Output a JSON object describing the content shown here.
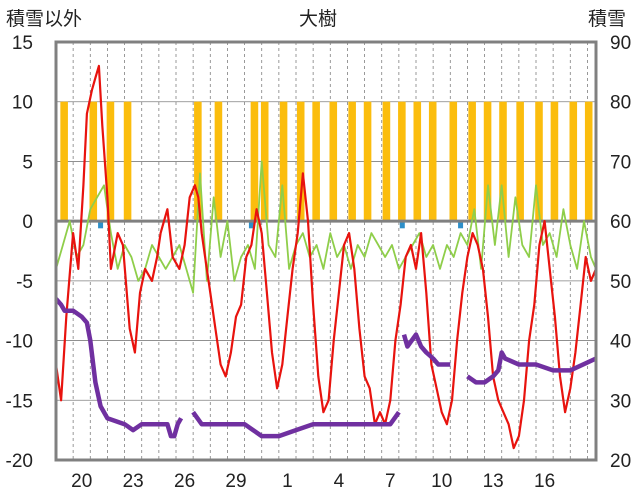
{
  "chart_data": {
    "type": "line",
    "title": "大樹",
    "left_axis_label": "積雪以外",
    "right_axis_label": "積雪",
    "left_ylim": [
      -20,
      15
    ],
    "left_ticks": [
      15,
      10,
      5,
      0,
      -5,
      -10,
      -15,
      -20
    ],
    "right_ylim": [
      20,
      90
    ],
    "right_ticks": [
      90,
      80,
      70,
      60,
      50,
      40,
      30,
      20
    ],
    "x_range": [
      0,
      31.5
    ],
    "x_tick_labels": [
      "20",
      "23",
      "26",
      "29",
      "1",
      "4",
      "7",
      "10",
      "13",
      "16"
    ],
    "x_tick_pos": [
      1.5,
      4.5,
      7.5,
      10.5,
      13.5,
      16.5,
      19.5,
      22.5,
      25.5,
      28.5
    ],
    "grid": true,
    "colors": {
      "temperature": "#e8130e",
      "wind": "#8fce4a",
      "sunshine": "#fbbd0d",
      "precipitation": "#2e8fc9",
      "snow_depth": "#7030a0",
      "zero_line": "#808080",
      "grid": "#808080"
    },
    "series": [
      {
        "kind": "temperature",
        "axis": "left",
        "x": [
          0,
          0.3,
          0.6,
          1.0,
          1.3,
          1.6,
          1.8,
          2.1,
          2.3,
          2.5,
          2.7,
          3.0,
          3.2,
          3.6,
          3.9,
          4.3,
          4.6,
          4.9,
          5.2,
          5.6,
          5.9,
          6.1,
          6.5,
          6.8,
          7.2,
          7.5,
          7.8,
          8.1,
          8.3,
          8.5,
          8.7,
          9.0,
          9.3,
          9.6,
          9.9,
          10.2,
          10.5,
          10.8,
          11.1,
          11.4,
          11.7,
          12.0,
          12.3,
          12.6,
          12.9,
          13.2,
          13.5,
          13.8,
          14.1,
          14.4,
          14.7,
          15.0,
          15.3,
          15.6,
          15.9,
          16.2,
          16.5,
          16.8,
          17.1,
          17.4,
          17.7,
          18.0,
          18.3,
          18.6,
          18.9,
          19.2,
          19.5,
          19.8,
          20.1,
          20.4,
          20.7,
          21.0,
          21.3,
          21.6,
          21.9,
          22.2,
          22.5,
          22.8,
          23.1,
          23.4,
          23.7,
          24.0,
          24.3,
          24.6,
          24.9,
          25.2,
          25.5,
          25.8,
          26.1,
          26.4,
          26.7,
          27.0,
          27.3,
          27.6,
          27.9,
          28.2,
          28.5,
          28.8,
          29.1,
          29.4,
          29.7,
          30.0,
          30.3,
          30.6,
          30.9,
          31.2,
          31.5
        ],
        "y": [
          -12,
          -15,
          -8,
          -1,
          -4,
          3,
          9,
          11,
          12,
          13,
          8,
          2,
          -4,
          -1,
          -2,
          -9,
          -11,
          -6,
          -4,
          -5,
          -3,
          -1,
          1,
          -3,
          -4,
          -2,
          2,
          3,
          2,
          -1,
          -3,
          -6,
          -9,
          -12,
          -13,
          -11,
          -8,
          -7,
          -3,
          -2,
          1,
          -1,
          -6,
          -11,
          -14,
          -12,
          -8,
          -4,
          -1,
          4,
          0,
          -7,
          -13,
          -16,
          -15,
          -10,
          -6,
          -2,
          -1,
          -4,
          -9,
          -13,
          -14,
          -17,
          -16,
          -17,
          -15,
          -10,
          -7,
          -3,
          -2,
          -4,
          -1,
          -6,
          -12,
          -14,
          -16,
          -17,
          -15,
          -10,
          -6,
          -3,
          -1,
          -2,
          -4,
          -8,
          -13,
          -15,
          -16,
          -17,
          -19,
          -18,
          -15,
          -10,
          -7,
          -2,
          0,
          -4,
          -8,
          -13,
          -16,
          -14,
          -11,
          -7,
          -3,
          -5,
          -4
        ]
      },
      {
        "kind": "wind",
        "axis": "left",
        "x": [
          0,
          0.4,
          0.8,
          1.2,
          1.6,
          2.0,
          2.4,
          2.8,
          3.2,
          3.6,
          4.0,
          4.4,
          4.8,
          5.2,
          5.6,
          6.0,
          6.4,
          6.8,
          7.2,
          7.6,
          8.0,
          8.4,
          8.8,
          9.2,
          9.6,
          10.0,
          10.4,
          10.8,
          11.2,
          11.6,
          12.0,
          12.4,
          12.8,
          13.2,
          13.6,
          14.0,
          14.4,
          14.8,
          15.2,
          15.6,
          16.0,
          16.4,
          16.8,
          17.2,
          17.6,
          18.0,
          18.4,
          18.8,
          19.2,
          19.6,
          20.0,
          20.4,
          20.8,
          21.2,
          21.6,
          22.0,
          22.4,
          22.8,
          23.2,
          23.6,
          24.0,
          24.4,
          24.8,
          25.2,
          25.6,
          26.0,
          26.4,
          26.8,
          27.2,
          27.6,
          28.0,
          28.4,
          28.8,
          29.2,
          29.6,
          30.0,
          30.4,
          30.8,
          31.2,
          31.5
        ],
        "y": [
          -4,
          -2,
          0,
          -3,
          -2,
          1,
          2,
          3,
          -1,
          -4,
          -2,
          -3,
          -5,
          -4,
          -2,
          -3,
          -4,
          -3,
          -2,
          -4,
          -6,
          4,
          -5,
          2,
          -3,
          0,
          -5,
          -3,
          -2,
          -4,
          5,
          -2,
          -3,
          3,
          -4,
          -2,
          -1,
          -3,
          -2,
          -4,
          -1,
          -3,
          -2,
          -4,
          -2,
          -3,
          -1,
          -2,
          -3,
          -2,
          -4,
          -3,
          -2,
          -1,
          -3,
          -2,
          -4,
          -2,
          -3,
          -1,
          -2,
          1,
          -4,
          3,
          -2,
          3,
          -3,
          2,
          -2,
          -3,
          3,
          -2,
          -1,
          -3,
          1,
          -2,
          -4,
          0,
          -3,
          -4
        ]
      },
      {
        "kind": "snow_depth",
        "axis": "right",
        "segments": [
          {
            "x": [
              0,
              0.3,
              0.5,
              1.0,
              1.5,
              1.8,
              2.0,
              2.3,
              2.6,
              3.0,
              4.0,
              4.5,
              5.0,
              5.5,
              6.5,
              6.7,
              6.9,
              7.1,
              7.3
            ],
            "y": [
              47,
              46,
              45,
              45,
              44,
              43,
              40,
              33,
              29,
              27,
              26,
              25,
              26,
              26,
              26,
              24,
              24,
              26,
              27
            ]
          },
          {
            "x": [
              8.0,
              8.5,
              9.0,
              10.0,
              11.0,
              11.5,
              12.0,
              12.5,
              13.0,
              14.0,
              15.0,
              16.0,
              17.0,
              18.0,
              19.0,
              19.5,
              20.0
            ],
            "y": [
              28,
              26,
              26,
              26,
              26,
              25,
              24,
              24,
              24,
              25,
              26,
              26,
              26,
              26,
              26,
              26,
              28
            ]
          },
          {
            "x": [
              20.3,
              20.5,
              21.0,
              21.3,
              21.6,
              22.0,
              22.3,
              22.8,
              23.0
            ],
            "y": [
              41,
              39,
              41,
              39,
              38,
              37,
              36,
              36,
              36
            ]
          },
          {
            "x": [
              24.0,
              24.5,
              25.0,
              25.5,
              25.8,
              26.0,
              26.2,
              27.0,
              28.0,
              29.0,
              30.0,
              31.5
            ],
            "y": [
              34,
              33,
              33,
              34,
              35,
              38,
              37,
              36,
              36,
              35,
              35,
              37
            ]
          }
        ]
      }
    ],
    "sunshine_bars_x": [
      0.4,
      0.55,
      2.1,
      2.25,
      3.1,
      3.25,
      4.1,
      4.25,
      8.2,
      8.35,
      9.4,
      9.55,
      11.5,
      11.65,
      12.1,
      12.25,
      13.2,
      13.35,
      14.2,
      14.35,
      15.1,
      15.25,
      16.1,
      16.25,
      17.2,
      17.35,
      18.1,
      18.25,
      19.2,
      19.35,
      20.1,
      20.25,
      21.0,
      21.15,
      21.9,
      22.05,
      23.1,
      23.25,
      24.2,
      24.35,
      25.1,
      25.25,
      26.0,
      26.15,
      27.0,
      27.15,
      28.1,
      28.25,
      29.0,
      29.15,
      30.1,
      30.25,
      31.0,
      31.15
    ],
    "sunshine_bar_top": 10,
    "precip_bars_x": [
      2.6,
      11.4,
      20.2,
      23.6
    ],
    "precip_bar_bottom": -0.6
  }
}
